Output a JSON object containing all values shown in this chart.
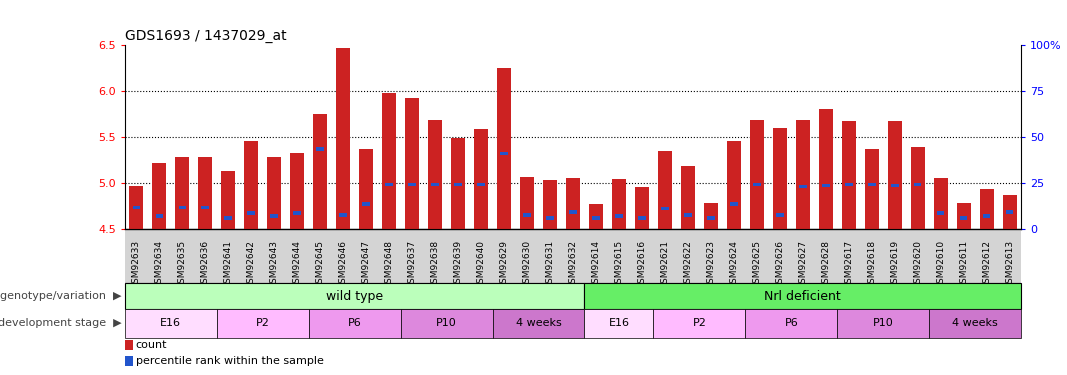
{
  "title": "GDS1693 / 1437029_at",
  "samples": [
    "GSM92633",
    "GSM92634",
    "GSM92635",
    "GSM92636",
    "GSM92641",
    "GSM92642",
    "GSM92643",
    "GSM92644",
    "GSM92645",
    "GSM92646",
    "GSM92647",
    "GSM92648",
    "GSM92637",
    "GSM92638",
    "GSM92639",
    "GSM92640",
    "GSM92629",
    "GSM92630",
    "GSM92631",
    "GSM92632",
    "GSM92614",
    "GSM92615",
    "GSM92616",
    "GSM92621",
    "GSM92622",
    "GSM92623",
    "GSM92624",
    "GSM92625",
    "GSM92626",
    "GSM92627",
    "GSM92628",
    "GSM92617",
    "GSM92618",
    "GSM92619",
    "GSM92620",
    "GSM92610",
    "GSM92611",
    "GSM92612",
    "GSM92613"
  ],
  "red_values": [
    4.97,
    5.22,
    5.28,
    5.28,
    5.13,
    5.45,
    5.28,
    5.32,
    5.75,
    6.47,
    5.37,
    5.98,
    5.92,
    5.68,
    5.49,
    5.59,
    6.25,
    5.06,
    5.03,
    5.05,
    4.77,
    5.04,
    4.95,
    5.35,
    5.18,
    4.78,
    5.45,
    5.68,
    5.6,
    5.68,
    5.8,
    5.67,
    5.37,
    5.67,
    5.39,
    5.05,
    4.78,
    4.93,
    4.87
  ],
  "blue_values": [
    4.73,
    4.64,
    4.73,
    4.73,
    4.62,
    4.67,
    4.64,
    4.67,
    5.37,
    4.65,
    4.77,
    4.98,
    4.98,
    4.98,
    4.98,
    4.98,
    5.32,
    4.65,
    4.62,
    4.68,
    4.62,
    4.64,
    4.62,
    4.72,
    4.65,
    4.62,
    4.77,
    4.98,
    4.65,
    4.96,
    4.97,
    4.98,
    4.98,
    4.97,
    4.98,
    4.67,
    4.62,
    4.64,
    4.68
  ],
  "ymin": 4.5,
  "ymax": 6.5,
  "y_right_ticks": [
    0,
    25,
    50,
    75,
    100
  ],
  "y_right_labels": [
    "0",
    "25",
    "50",
    "75",
    "100%"
  ],
  "y_left_ticks": [
    4.5,
    5.0,
    5.5,
    6.0,
    6.5
  ],
  "dotted_lines": [
    5.0,
    5.5,
    6.0
  ],
  "bar_color_red": "#cc2222",
  "bar_color_blue": "#2255cc",
  "bar_width": 0.6,
  "background_color": "#ffffff",
  "plot_bg_color": "#ffffff",
  "xtick_bg_color": "#d4d4d4",
  "wild_type_count": 20,
  "nrl_deficient_count": 19,
  "wild_type_color": "#bbffbb",
  "nrl_deficient_color": "#66ee66",
  "genotype_label": "genotype/variation",
  "stage_label": "development stage",
  "stages_wt": [
    {
      "label": "E16",
      "start": 0,
      "end": 4,
      "color": "#ffddff"
    },
    {
      "label": "P2",
      "start": 4,
      "end": 8,
      "color": "#ffbbff"
    },
    {
      "label": "P6",
      "start": 8,
      "end": 12,
      "color": "#ee99ee"
    },
    {
      "label": "P10",
      "start": 12,
      "end": 16,
      "color": "#dd88dd"
    },
    {
      "label": "4 weeks",
      "start": 16,
      "end": 20,
      "color": "#cc77cc"
    }
  ],
  "stages_nrl": [
    {
      "label": "E16",
      "start": 20,
      "end": 23,
      "color": "#ffddff"
    },
    {
      "label": "P2",
      "start": 23,
      "end": 27,
      "color": "#ffbbff"
    },
    {
      "label": "P6",
      "start": 27,
      "end": 31,
      "color": "#ee99ee"
    },
    {
      "label": "P10",
      "start": 31,
      "end": 35,
      "color": "#dd88dd"
    },
    {
      "label": "4 weeks",
      "start": 35,
      "end": 39,
      "color": "#cc77cc"
    }
  ],
  "legend_count_color": "#cc2222",
  "legend_percentile_color": "#2255cc"
}
